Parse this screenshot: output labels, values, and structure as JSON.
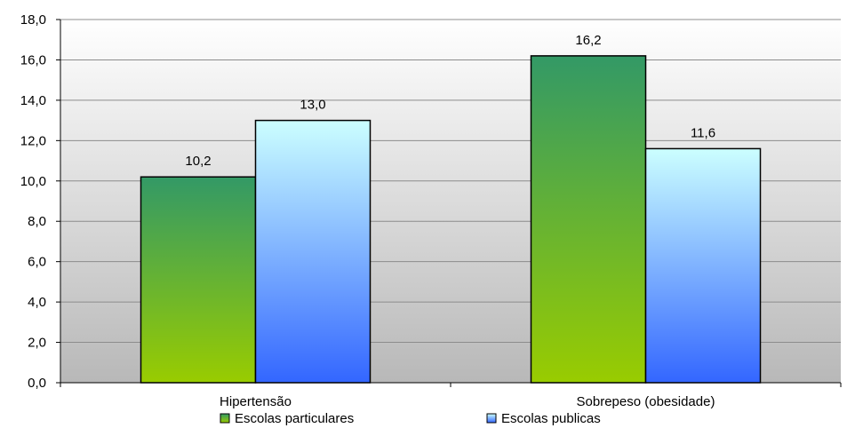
{
  "chart_data": {
    "type": "bar",
    "categories": [
      "Hipertensão",
      "Sobrepeso (obesidade)"
    ],
    "series": [
      {
        "name": "Escolas particulares",
        "values": [
          10.2,
          16.2
        ],
        "labels": [
          "10,2",
          "16,2"
        ],
        "gradient_top": "#339966",
        "gradient_bottom": "#99cc00"
      },
      {
        "name": "Escolas publicas",
        "values": [
          13.0,
          11.6
        ],
        "labels": [
          "13,0",
          "11,6"
        ],
        "gradient_top": "#ccffff",
        "gradient_bottom": "#3366ff"
      }
    ],
    "ylim": [
      0,
      18
    ],
    "yticks": [
      0,
      2,
      4,
      6,
      8,
      10,
      12,
      14,
      16,
      18
    ],
    "ytick_labels": [
      "0,0",
      "2,0",
      "4,0",
      "6,0",
      "8,0",
      "10,0",
      "12,0",
      "14,0",
      "16,0",
      "18,0"
    ],
    "grid": true,
    "legend_position": "bottom",
    "plot_background_top": "#ffffff",
    "plot_background_bottom": "#b8b8b8"
  }
}
